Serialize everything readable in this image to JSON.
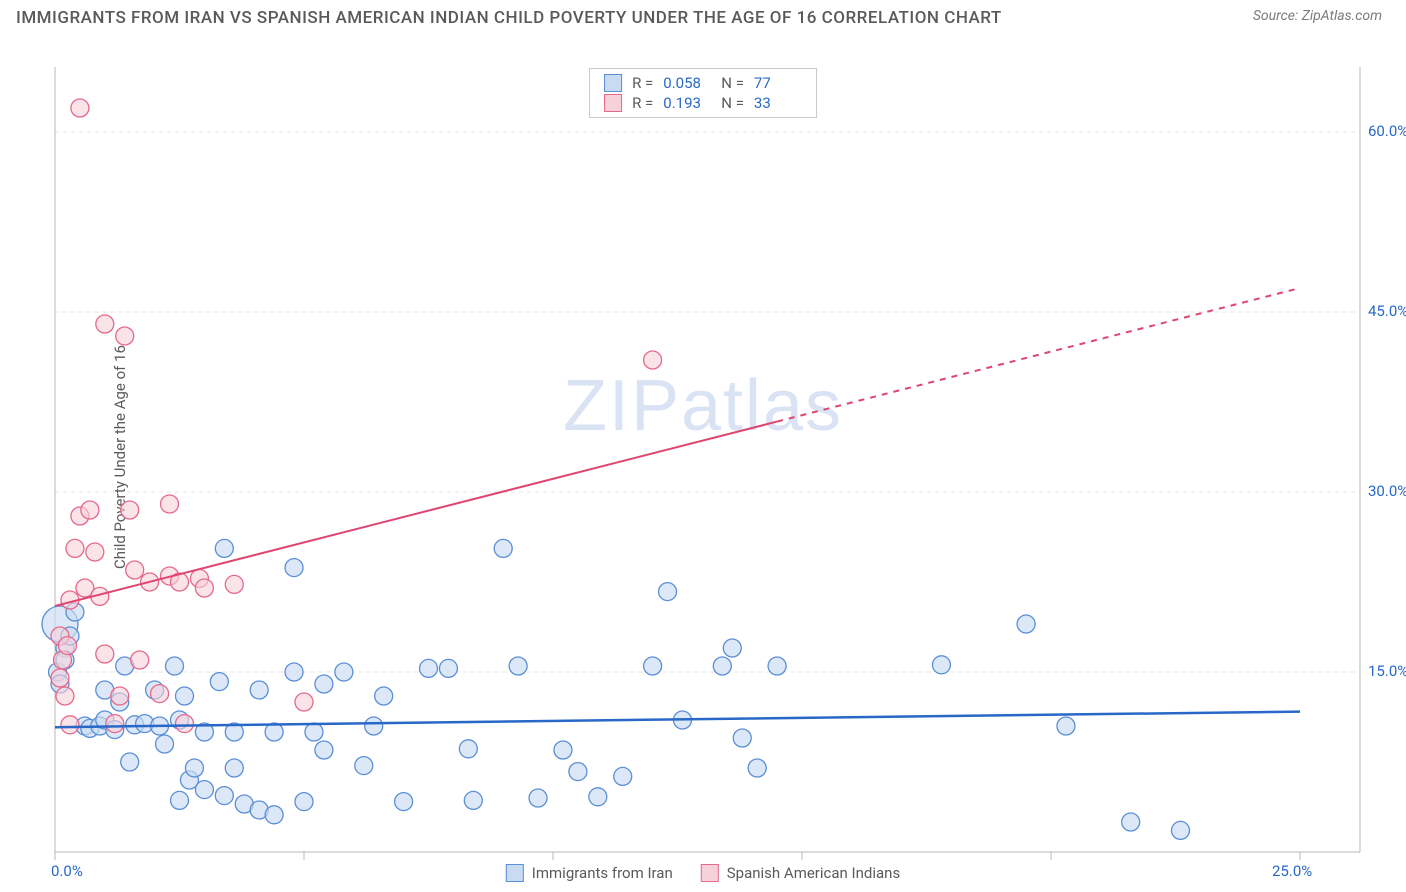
{
  "header": {
    "title": "IMMIGRANTS FROM IRAN VS SPANISH AMERICAN INDIAN CHILD POVERTY UNDER THE AGE OF 16 CORRELATION CHART",
    "source_label": "Source:",
    "source_value": "ZipAtlas.com"
  },
  "watermark": "ZIPatlas",
  "chart": {
    "type": "scatter",
    "y_axis_label": "Child Poverty Under the Age of 16",
    "background_color": "#ffffff",
    "grid_color": "#e4e4e4",
    "grid_dash": "4,4",
    "axis_line_color": "#b8b8b8",
    "tick_label_color": "#2968c8",
    "tick_fontsize": 15,
    "plot_x_min": 55,
    "plot_x_max": 1300,
    "plot_y_min": 40,
    "plot_y_max": 820,
    "xlim": [
      0,
      25
    ],
    "ylim": [
      0,
      65
    ],
    "x_ticks": [
      0,
      5,
      10,
      15,
      20,
      25
    ],
    "x_tick_labels": [
      "0.0%",
      "",
      "",
      "",
      "",
      "25.0%"
    ],
    "y_ticks": [
      15,
      30,
      45,
      60
    ],
    "y_tick_labels": [
      "15.0%",
      "30.0%",
      "45.0%",
      "60.0%"
    ],
    "series": [
      {
        "name": "Immigrants from Iran",
        "marker_fill": "#c9dbf2",
        "marker_stroke": "#5b8fd6",
        "marker_fill_opacity": 0.65,
        "marker_radius_default": 9,
        "line_color": "#2968c8",
        "line_width": 2.5,
        "trend_start": [
          0,
          10.4
        ],
        "trend_end": [
          25,
          11.7
        ],
        "trend_dash_split": 25,
        "R": "0.058",
        "N": "77",
        "points": [
          [
            0.1,
            19,
            18
          ],
          [
            0.05,
            15,
            9
          ],
          [
            0.1,
            14,
            9
          ],
          [
            0.2,
            17,
            9
          ],
          [
            0.3,
            18,
            9
          ],
          [
            0.2,
            16,
            9
          ],
          [
            0.4,
            20,
            9
          ],
          [
            0.6,
            10.5,
            9
          ],
          [
            0.7,
            10.3,
            9
          ],
          [
            0.9,
            10.5,
            9
          ],
          [
            1.0,
            11,
            9
          ],
          [
            1.2,
            10.2,
            9
          ],
          [
            1.0,
            13.5,
            9
          ],
          [
            1.3,
            12.5,
            9
          ],
          [
            1.4,
            15.5,
            9
          ],
          [
            1.6,
            10.6,
            9
          ],
          [
            1.8,
            10.7,
            9
          ],
          [
            1.5,
            7.5,
            9
          ],
          [
            2.0,
            13.5,
            9
          ],
          [
            2.1,
            10.5,
            9
          ],
          [
            2.2,
            9,
            9
          ],
          [
            2.4,
            15.5,
            9
          ],
          [
            2.5,
            11,
            9
          ],
          [
            2.5,
            4.3,
            9
          ],
          [
            2.7,
            6,
            9
          ],
          [
            2.8,
            7,
            9
          ],
          [
            2.6,
            13,
            9
          ],
          [
            3.0,
            10,
            9
          ],
          [
            3.0,
            5.2,
            9
          ],
          [
            3.3,
            14.2,
            9
          ],
          [
            3.4,
            25.3,
            9
          ],
          [
            3.4,
            4.7,
            9
          ],
          [
            3.6,
            10,
            9
          ],
          [
            3.6,
            7,
            9
          ],
          [
            3.8,
            4,
            9
          ],
          [
            4.1,
            13.5,
            9
          ],
          [
            4.1,
            3.5,
            9
          ],
          [
            4.4,
            3.1,
            9
          ],
          [
            4.4,
            10,
            9
          ],
          [
            4.8,
            23.7,
            9
          ],
          [
            4.8,
            15,
            9
          ],
          [
            5.0,
            4.2,
            9
          ],
          [
            5.2,
            10,
            9
          ],
          [
            5.4,
            14,
            9
          ],
          [
            5.4,
            8.5,
            9
          ],
          [
            5.8,
            15,
            9
          ],
          [
            6.2,
            7.2,
            9
          ],
          [
            6.4,
            10.5,
            9
          ],
          [
            6.6,
            13,
            9
          ],
          [
            7.0,
            4.2,
            9
          ],
          [
            7.5,
            15.3,
            9
          ],
          [
            7.9,
            15.3,
            9
          ],
          [
            8.3,
            8.6,
            9
          ],
          [
            8.4,
            4.3,
            9
          ],
          [
            9.0,
            25.3,
            9
          ],
          [
            9.3,
            15.5,
            9
          ],
          [
            9.7,
            4.5,
            9
          ],
          [
            10.2,
            8.5,
            9
          ],
          [
            10.5,
            6.7,
            9
          ],
          [
            10.9,
            4.6,
            9
          ],
          [
            11.4,
            6.3,
            9
          ],
          [
            12.0,
            15.5,
            9
          ],
          [
            12.3,
            21.7,
            9
          ],
          [
            12.6,
            11,
            9
          ],
          [
            13.4,
            15.5,
            9
          ],
          [
            13.6,
            17,
            9
          ],
          [
            13.8,
            9.5,
            9
          ],
          [
            14.1,
            7,
            9
          ],
          [
            14.5,
            15.5,
            9
          ],
          [
            17.8,
            15.6,
            9
          ],
          [
            19.5,
            19,
            9
          ],
          [
            20.3,
            10.5,
            9
          ],
          [
            21.6,
            2.5,
            9
          ],
          [
            22.6,
            1.8,
            9
          ]
        ]
      },
      {
        "name": "Spanish American Indians",
        "marker_fill": "#f6d0da",
        "marker_stroke": "#e56a8a",
        "marker_fill_opacity": 0.6,
        "marker_radius_default": 9,
        "line_color": "#e04570",
        "line_width": 2,
        "trend_start": [
          0,
          20.5
        ],
        "trend_end": [
          25,
          47
        ],
        "trend_dash_split": 14.5,
        "R": "0.193",
        "N": "33",
        "points": [
          [
            0.1,
            18,
            9
          ],
          [
            0.1,
            14.5,
            9
          ],
          [
            0.15,
            16,
            9
          ],
          [
            0.2,
            13,
            9
          ],
          [
            0.3,
            10.6,
            9
          ],
          [
            0.25,
            17.2,
            9
          ],
          [
            0.3,
            21,
            9
          ],
          [
            0.4,
            25.3,
            9
          ],
          [
            0.5,
            28,
            9
          ],
          [
            0.5,
            62,
            9
          ],
          [
            0.6,
            22,
            9
          ],
          [
            0.7,
            28.5,
            9
          ],
          [
            0.8,
            25,
            9
          ],
          [
            0.9,
            21.3,
            9
          ],
          [
            1.0,
            44,
            9
          ],
          [
            1.0,
            16.5,
            9
          ],
          [
            1.2,
            10.7,
            9
          ],
          [
            1.3,
            13,
            9
          ],
          [
            1.4,
            43,
            9
          ],
          [
            1.5,
            28.5,
            9
          ],
          [
            1.6,
            23.5,
            9
          ],
          [
            1.7,
            16,
            9
          ],
          [
            1.9,
            22.5,
            9
          ],
          [
            2.1,
            13.2,
            9
          ],
          [
            2.3,
            23,
            9
          ],
          [
            2.3,
            29,
            9
          ],
          [
            2.5,
            22.5,
            9
          ],
          [
            2.6,
            10.7,
            9
          ],
          [
            2.9,
            22.8,
            9
          ],
          [
            3.0,
            22,
            9
          ],
          [
            3.6,
            22.3,
            9
          ],
          [
            5.0,
            12.5,
            9
          ],
          [
            12.0,
            41,
            9
          ]
        ]
      }
    ]
  },
  "stats_box": {
    "rows": [
      {
        "swatch_fill": "#c9dbf2",
        "swatch_stroke": "#5b8fd6",
        "R_label": "R =",
        "R_val": "0.058",
        "N_label": "N =",
        "N_val": "77"
      },
      {
        "swatch_fill": "#f6d0da",
        "swatch_stroke": "#e56a8a",
        "R_label": "R =",
        "R_val": "0.193",
        "N_label": "N =",
        "N_val": "33"
      }
    ]
  },
  "bottom_legend": [
    {
      "swatch_fill": "#c9dbf2",
      "swatch_stroke": "#5b8fd6",
      "label": "Immigrants from Iran"
    },
    {
      "swatch_fill": "#f6d0da",
      "swatch_stroke": "#e56a8a",
      "label": "Spanish American Indians"
    }
  ]
}
